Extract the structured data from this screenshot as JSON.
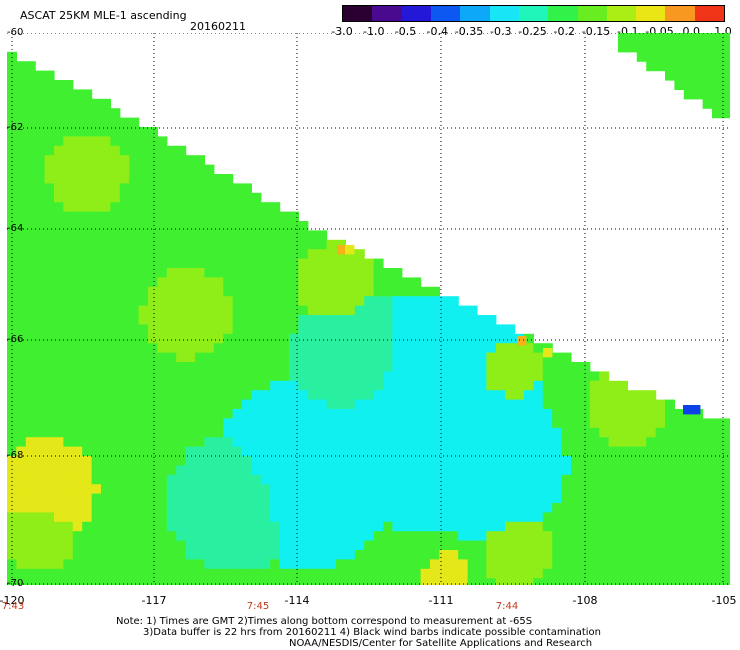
{
  "header": {
    "title": "ASCAT 25KM MLE-1 ascending",
    "date": "20160211"
  },
  "colorbar": {
    "labels": [
      "-3.0",
      "-1.0",
      "-0.5",
      "-0.4",
      "-0.35",
      "-0.3",
      "-0.25",
      "-0.2",
      "-0.15",
      "-0.1",
      "-0.05",
      "0.0",
      "1.0"
    ],
    "colors": [
      "#2a0030",
      "#4a0a90",
      "#2418d8",
      "#0c58f0",
      "#0ea8f8",
      "#18e6f6",
      "#20f6ba",
      "#30f248",
      "#68ee20",
      "#aaee16",
      "#eae616",
      "#f89820",
      "#f03418"
    ]
  },
  "axes": {
    "y_labels": [
      "-60",
      "-62",
      "-64",
      "-66",
      "-68",
      "-70"
    ],
    "x_labels": [
      "-120",
      "-117",
      "-114",
      "-111",
      "-108",
      "-105"
    ]
  },
  "times": [
    "7:43",
    "7:45",
    "7:44"
  ],
  "notes": {
    "line1": "Note: 1) Times are GMT  2)Times along bottom correspond to measurement at -65S",
    "line2": "3)Data buffer is 22 hrs from 20160211  4) Black wind barbs indicate possible contamination",
    "line3": "NOAA/NESDIS/Center for Satellite Applications and Research"
  },
  "swath_colors": {
    "green": "#40f030",
    "lime": "#90ee18",
    "yellow": "#e4e818",
    "orange": "#f8b018",
    "cyan": "#10f0f0",
    "teal": "#28f0a0",
    "blue": "#0c40e8"
  }
}
